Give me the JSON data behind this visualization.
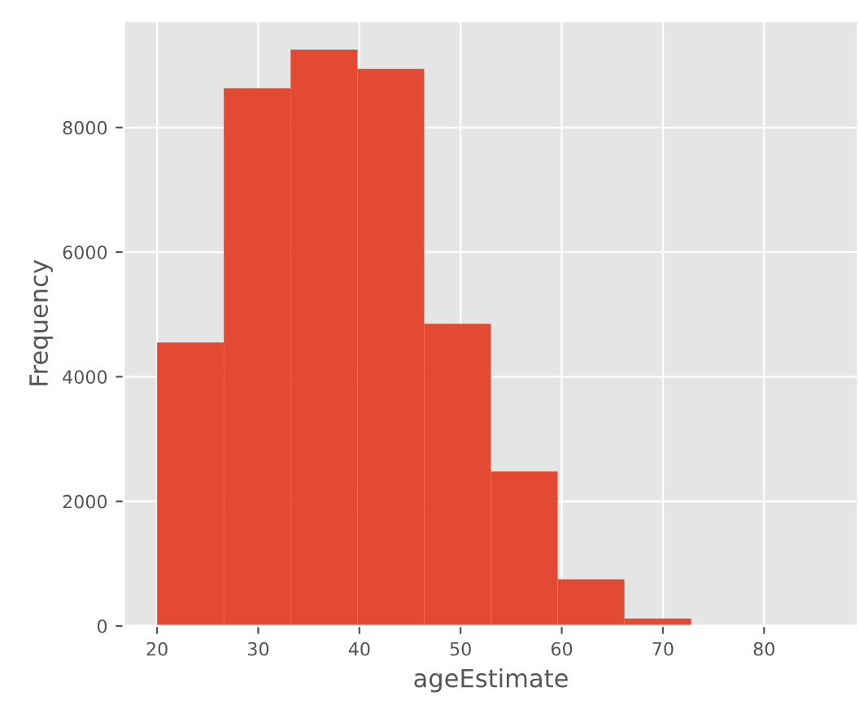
{
  "chart_data": {
    "type": "histogram",
    "xlabel": "ageEstimate",
    "ylabel": "Frequency",
    "bins": [
      20,
      26.6,
      33.2,
      39.8,
      46.4,
      53,
      59.6,
      66.2,
      72.8,
      79.4,
      86
    ],
    "values": [
      4550,
      8630,
      9250,
      8940,
      4850,
      2480,
      750,
      120,
      0,
      0
    ],
    "color": "#e24a33",
    "xlim": [
      16.7,
      89.3
    ],
    "ylim": [
      0,
      9710
    ],
    "xticks": [
      20,
      30,
      40,
      50,
      60,
      70,
      80
    ],
    "yticks": [
      0,
      2000,
      4000,
      6000,
      8000
    ],
    "grid": true
  }
}
